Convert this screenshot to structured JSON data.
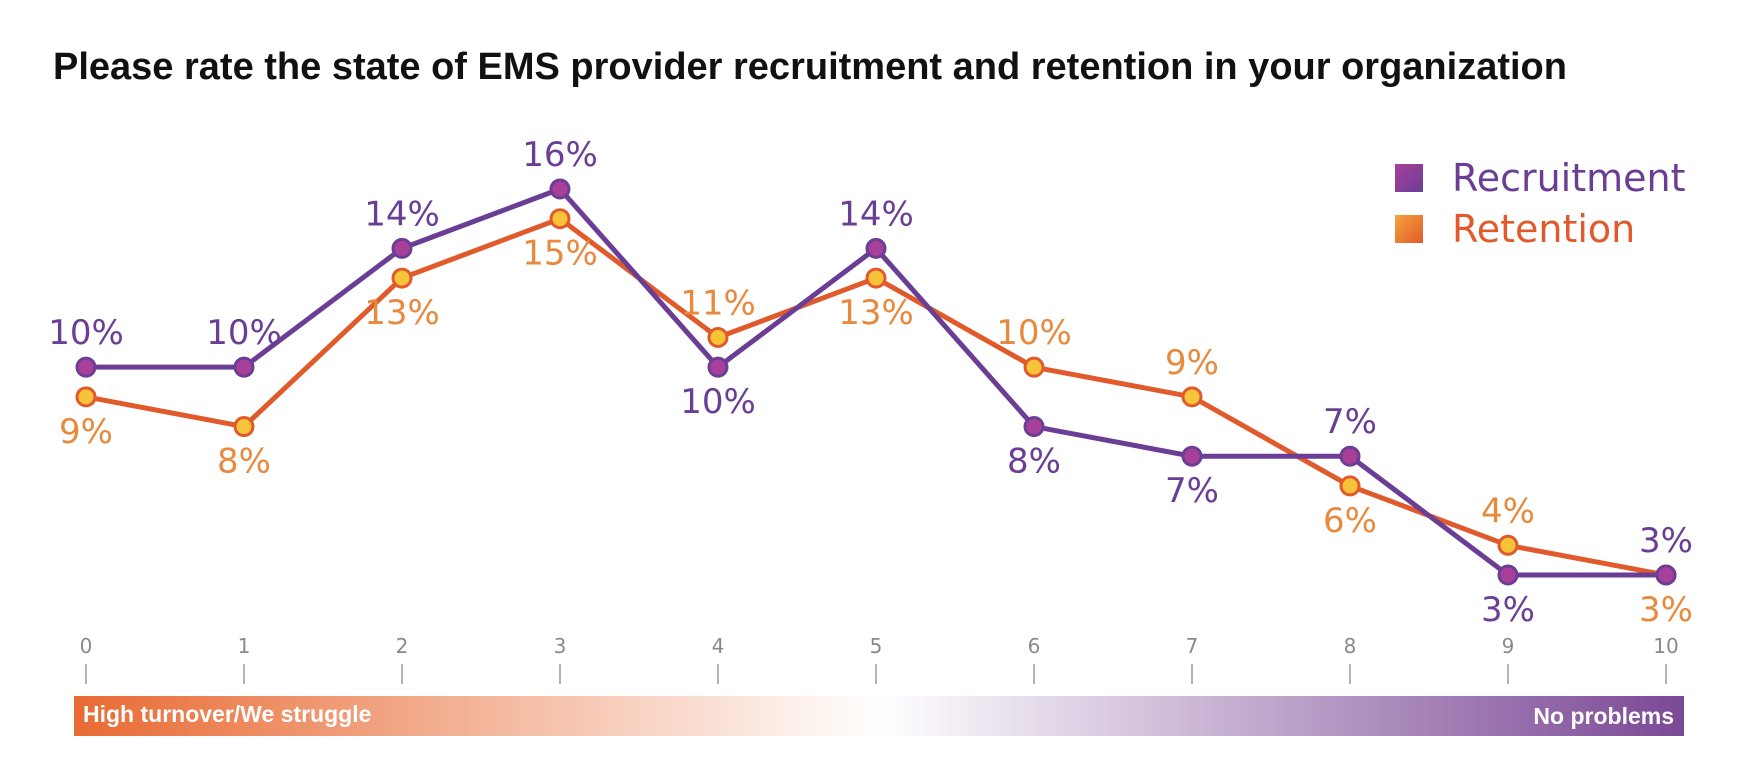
{
  "chart_data": {
    "type": "line",
    "title": "Please rate the state of EMS provider recruitment and retention in your organization",
    "x": [
      0,
      1,
      2,
      3,
      4,
      5,
      6,
      7,
      8,
      9,
      10
    ],
    "tick_labels": [
      "0",
      "1",
      "2",
      "3",
      "4",
      "5",
      "6",
      "7",
      "8",
      "9",
      "10"
    ],
    "series": [
      {
        "name": "Recruitment",
        "values": [
          10,
          10,
          14,
          16,
          10,
          14,
          8,
          7,
          7,
          3,
          3
        ],
        "labels": [
          "10%",
          "10%",
          "14%",
          "16%",
          "10%",
          "14%",
          "8%",
          "7%",
          "7%",
          "3%",
          "3%"
        ],
        "color": "#6b3e96",
        "marker_color": "#a8409a"
      },
      {
        "name": "Retention",
        "values": [
          9,
          8,
          13,
          15,
          11,
          13,
          10,
          9,
          6,
          4,
          3
        ],
        "labels": [
          "9%",
          "8%",
          "13%",
          "15%",
          "11%",
          "13%",
          "10%",
          "9%",
          "6%",
          "4%",
          "3%"
        ],
        "color": "#e05a2c",
        "marker_color": "#f7c338",
        "label_color": "#e88a3d"
      }
    ],
    "xlabel": "",
    "ylabel": "",
    "ylim": [
      3,
      16
    ],
    "legend_position": "top-right",
    "grid": false,
    "scale_bar": {
      "left_label": "High turnover/We struggle",
      "right_label": "No problems",
      "left_color": "#e86a33",
      "right_color": "#7b4896"
    }
  }
}
